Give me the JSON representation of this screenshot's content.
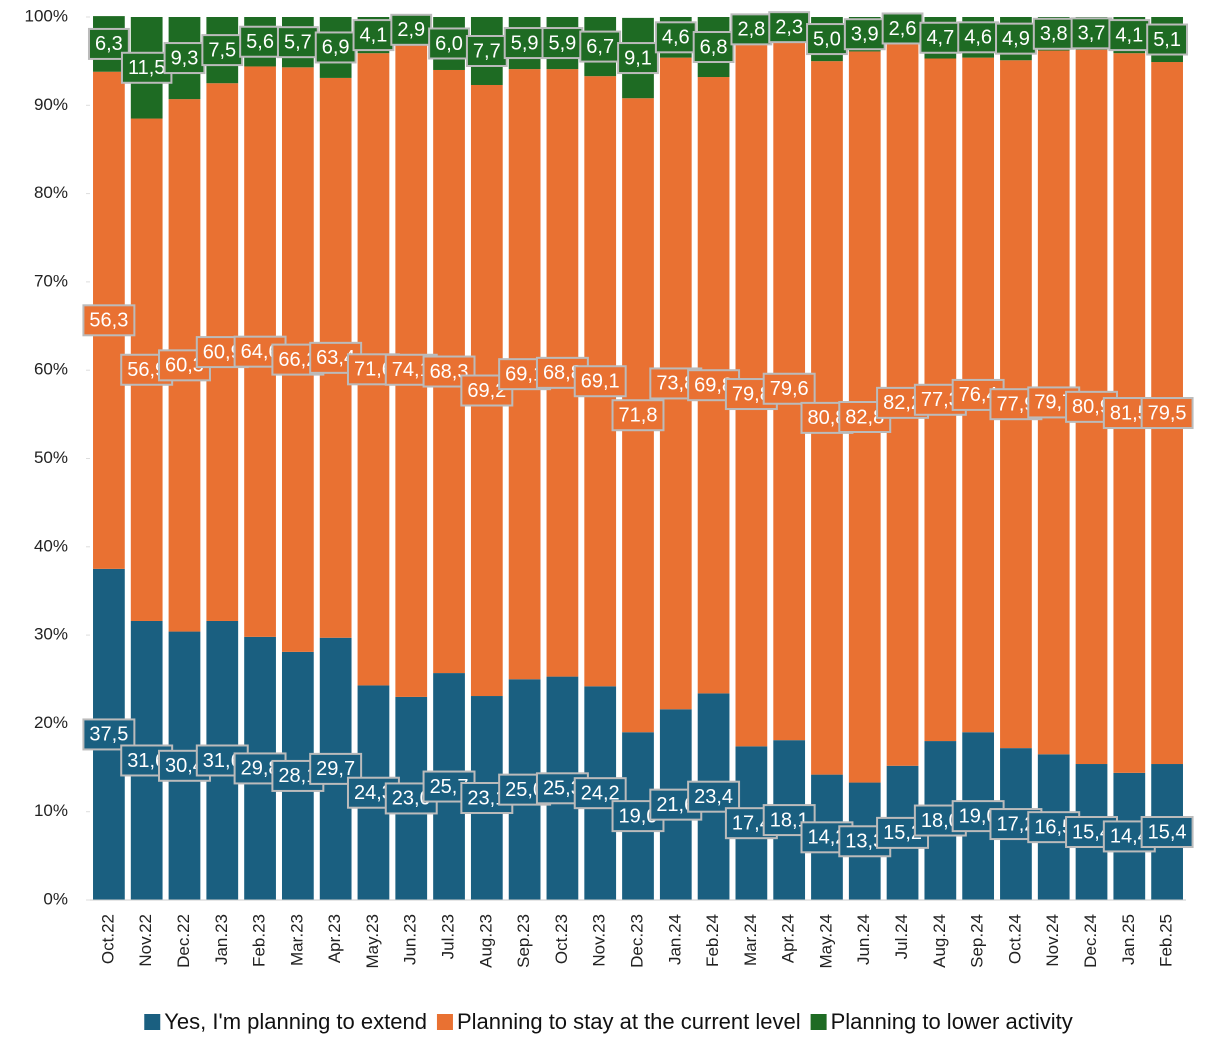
{
  "chart_data": {
    "type": "stacked_bar",
    "categories": [
      "Oct.22",
      "Nov.22",
      "Dec.22",
      "Jan.23",
      "Feb.23",
      "Mar.23",
      "Apr.23",
      "May.23",
      "Jun.23",
      "Jul.23",
      "Aug.23",
      "Sep.23",
      "Oct.23",
      "Nov.23",
      "Dec.23",
      "Jan.24",
      "Feb.24",
      "Mar.24",
      "Apr.24",
      "May.24",
      "Jun.24",
      "Jul.24",
      "Aug.24",
      "Sep.24",
      "Oct.24",
      "Nov.24",
      "Dec.24",
      "Jan.25",
      "Feb.25"
    ],
    "series": [
      {
        "name": "Yes, I'm planning to extend",
        "color": "#1a5f80",
        "values": [
          37.5,
          31.6,
          30.4,
          31.6,
          29.8,
          28.1,
          29.7,
          24.3,
          23.0,
          25.7,
          23.1,
          25.0,
          25.3,
          24.2,
          19.0,
          21.6,
          23.4,
          17.4,
          18.1,
          14.2,
          13.3,
          15.2,
          18.0,
          19.0,
          17.2,
          16.5,
          15.4,
          14.4,
          15.4
        ],
        "value_labels": [
          "37,5",
          "31,6",
          "30,4",
          "31,6",
          "29,8",
          "28,1",
          "29,7",
          "24,3",
          "23,0",
          "25,7",
          "23,1",
          "25,0",
          "25,3",
          "24,2",
          "19,0",
          "21,6",
          "23,4",
          "17,4",
          "18,1",
          "14,2",
          "13,3",
          "15,2",
          "18,0",
          "19,0",
          "17,2",
          "16,5",
          "15,4",
          "14,4",
          "15,4"
        ]
      },
      {
        "name": "Planning to stay at the current level",
        "color": "#e97132",
        "values": [
          56.3,
          56.9,
          60.3,
          60.9,
          64.6,
          66.2,
          63.4,
          71.6,
          74.1,
          68.3,
          69.2,
          69.1,
          68.8,
          69.1,
          71.8,
          73.8,
          69.8,
          79.8,
          79.6,
          80.8,
          82.8,
          82.2,
          77.3,
          76.4,
          77.9,
          79.7,
          80.9,
          81.5,
          79.5
        ],
        "value_labels": [
          "56,3",
          "56,9",
          "60,3",
          "60,9",
          "64,6",
          "66,2",
          "63,4",
          "71,6",
          "74,1",
          "68,3",
          "69,2",
          "69,1",
          "68,8",
          "69,1",
          "71,8",
          "73,8",
          "69,8",
          "79,8",
          "79,6",
          "80,8",
          "82,8",
          "82,2",
          "77,3",
          "76,4",
          "77,9",
          "79,7",
          "80,9",
          "81,5",
          "79,5"
        ]
      },
      {
        "name": "Planning to lower activity",
        "color": "#1e6b23",
        "values": [
          6.3,
          11.5,
          9.3,
          7.5,
          5.6,
          5.7,
          6.9,
          4.1,
          2.9,
          6.0,
          7.7,
          5.9,
          5.9,
          6.7,
          9.1,
          4.6,
          6.8,
          2.8,
          2.3,
          5.0,
          3.9,
          2.6,
          4.7,
          4.6,
          4.9,
          3.8,
          3.7,
          4.1,
          5.1
        ],
        "value_labels": [
          "6,3",
          "11,5",
          "9,3",
          "7,5",
          "5,6",
          "5,7",
          "6,9",
          "4,1",
          "2,9",
          "6,0",
          "7,7",
          "5,9",
          "5,9",
          "6,7",
          "9,1",
          "4,6",
          "6,8",
          "2,8",
          "2,3",
          "5,0",
          "3,9",
          "2,6",
          "4,7",
          "4,6",
          "4,9",
          "3,8",
          "3,7",
          "4,1",
          "5,1"
        ]
      }
    ],
    "ylim": [
      0,
      100
    ],
    "yticks": [
      {
        "value": 0,
        "label": "0%"
      },
      {
        "value": 10,
        "label": "10%"
      },
      {
        "value": 20,
        "label": "20%"
      },
      {
        "value": 30,
        "label": "30%"
      },
      {
        "value": 40,
        "label": "40%"
      },
      {
        "value": 50,
        "label": "50%"
      },
      {
        "value": 60,
        "label": "60%"
      },
      {
        "value": 70,
        "label": "70%"
      },
      {
        "value": 80,
        "label": "80%"
      },
      {
        "value": 90,
        "label": "90%"
      },
      {
        "value": 100,
        "label": "100%"
      }
    ],
    "legend": "bottom"
  }
}
